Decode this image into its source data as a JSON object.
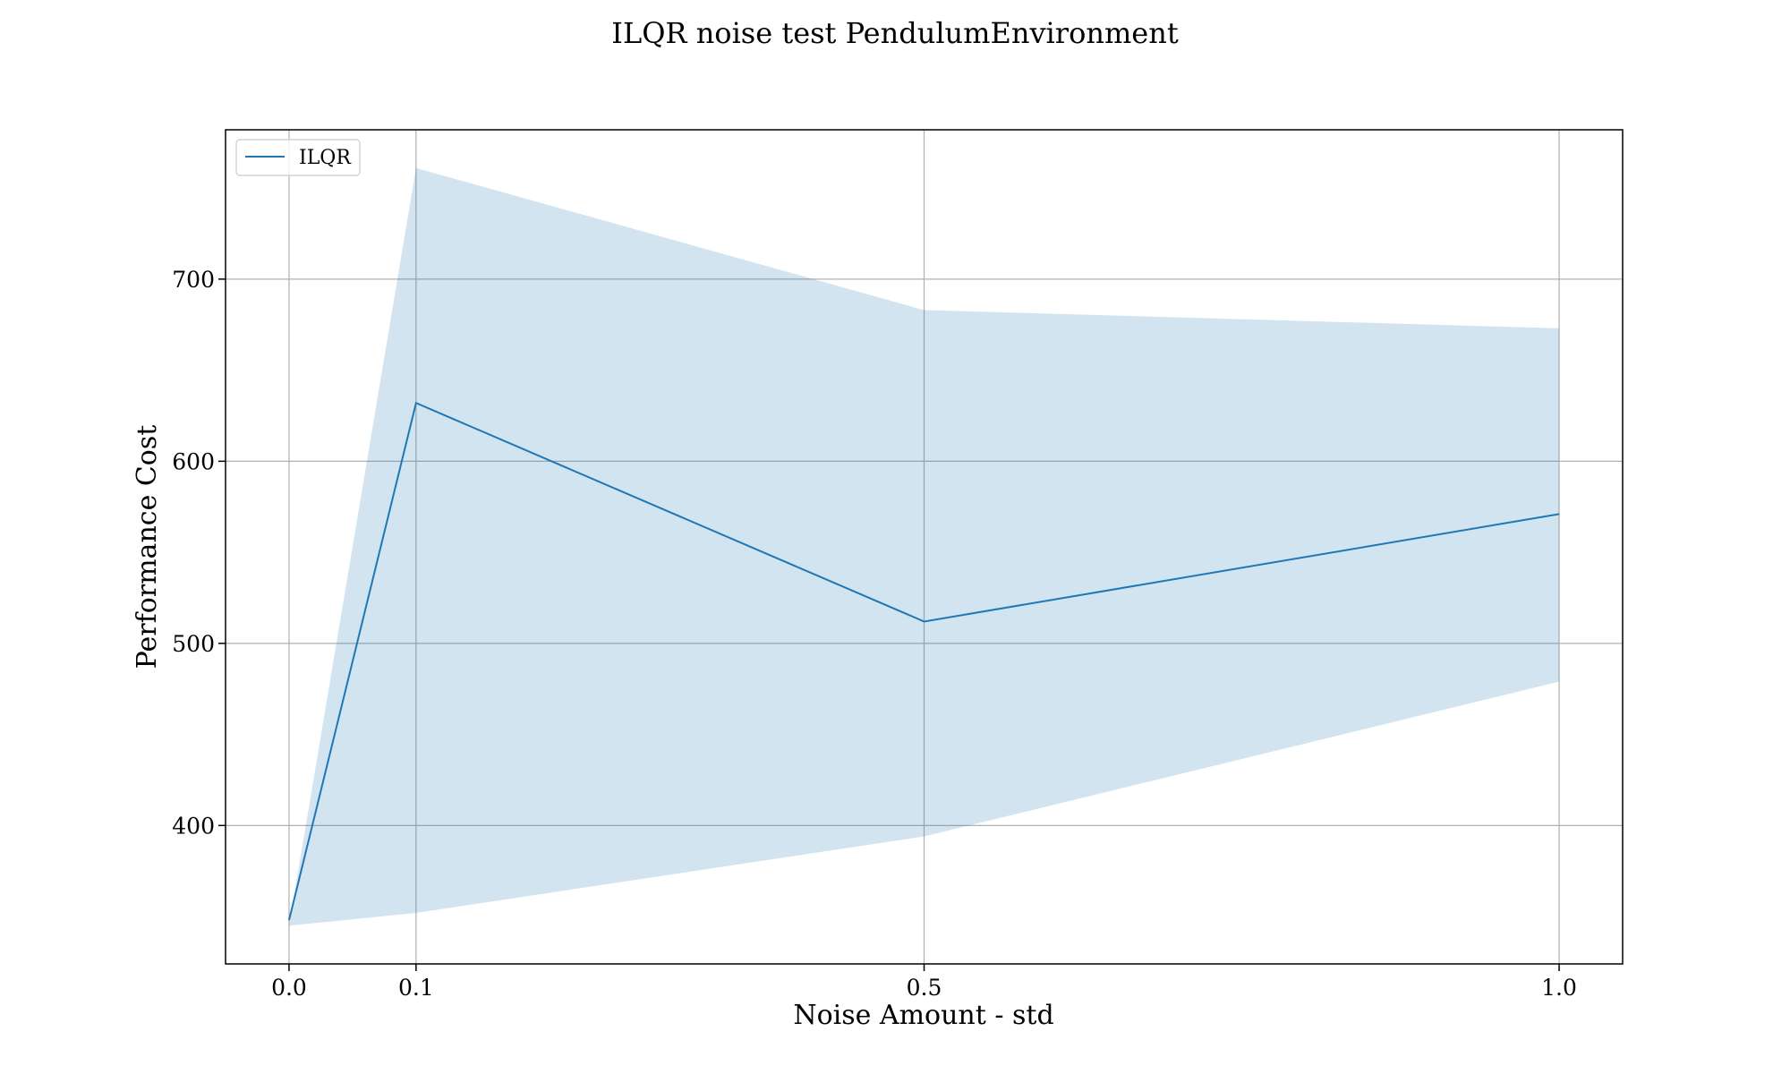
{
  "chart_data": {
    "type": "line",
    "title": "ILQR noise test PendulumEnvironment",
    "xlabel": "Noise Amount - std",
    "ylabel": "Performance Cost",
    "x": [
      0.0,
      0.1,
      0.5,
      1.0
    ],
    "x_ticks": [
      "0.0",
      "0.1",
      "0.5",
      "1.0"
    ],
    "y_ticks": [
      400,
      500,
      600,
      700
    ],
    "xlim": [
      -0.05,
      1.05
    ],
    "ylim": [
      324,
      782
    ],
    "grid": true,
    "legend": {
      "placement": "upper-left"
    },
    "series": [
      {
        "name": "ILQR",
        "color": "#1f77b4",
        "values": [
          348,
          632,
          512,
          571
        ],
        "band_lower": [
          345,
          352,
          394,
          479
        ],
        "band_upper": [
          345,
          761,
          683,
          673
        ],
        "band_color": "#1f77b4",
        "band_opacity": 0.2
      }
    ]
  }
}
